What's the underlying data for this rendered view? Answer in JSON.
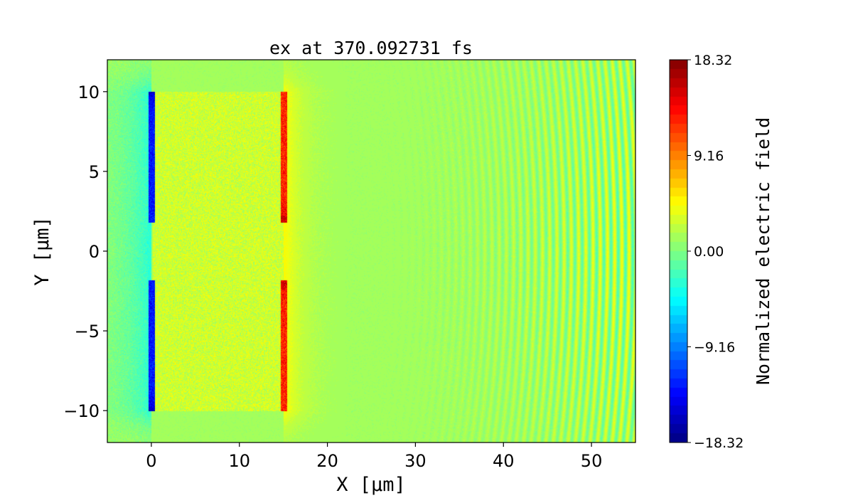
{
  "chart_data": {
    "type": "heatmap",
    "title": "ex at 370.092731 fs",
    "xlabel": "X [μm]",
    "ylabel": "Y [μm]",
    "xlim": [
      -5,
      55
    ],
    "ylim": [
      -12,
      12
    ],
    "xticks": [
      0,
      10,
      20,
      30,
      40,
      50
    ],
    "xtick_labels": [
      "0",
      "10",
      "20",
      "30",
      "40",
      "50"
    ],
    "yticks": [
      10,
      5,
      0,
      -5,
      -10
    ],
    "ytick_labels": [
      "10",
      "5",
      "0",
      "−5",
      "−10"
    ],
    "colormap": "jet",
    "clim": [
      -18.32,
      18.32
    ],
    "colorbar": {
      "label": "Normalized electric field",
      "ticks": [
        18.32,
        9.16,
        0.0,
        -9.16,
        -18.32
      ],
      "tick_labels": [
        "18.32",
        "9.16",
        "0.00",
        "−9.16",
        "−18.32"
      ]
    }
  }
}
